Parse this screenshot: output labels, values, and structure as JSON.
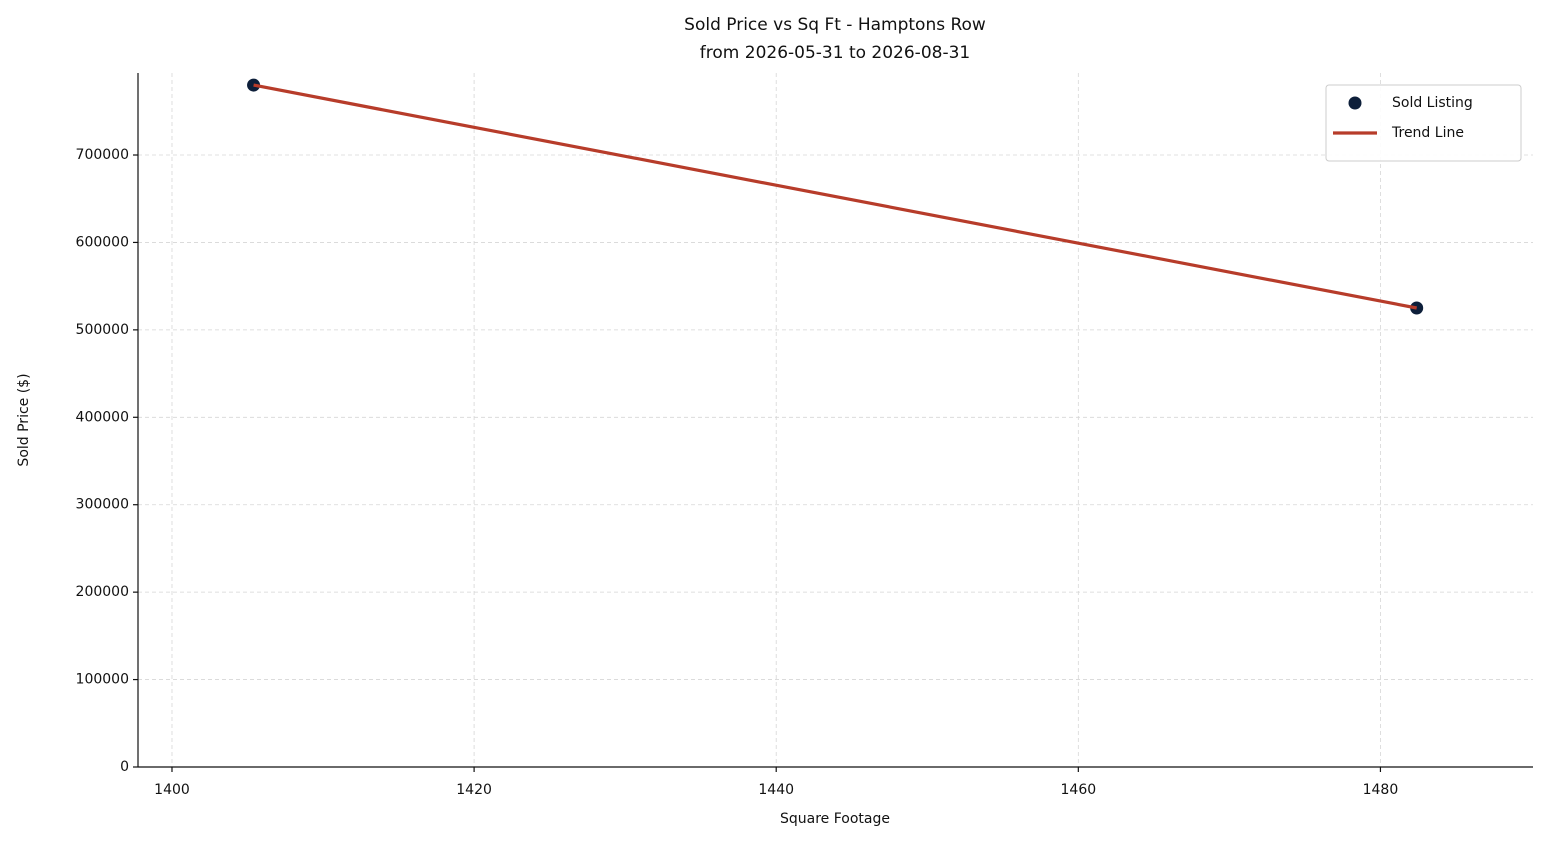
{
  "chart_data": {
    "type": "scatter",
    "title": "Sold Price vs Sq Ft - Hamptons Row",
    "subtitle": "from 2026-05-31 to 2026-08-31",
    "x_label": "Square Footage",
    "y_label": "Sold Price ($)",
    "series": [
      {
        "name": "Sold Listing",
        "type": "scatter",
        "color": "#0d1f3a",
        "x": [
          1405.4,
          1482.4
        ],
        "values": [
          780000,
          525000
        ]
      },
      {
        "name": "Trend Line",
        "type": "line",
        "color": "#b73c2a",
        "x": [
          1405.4,
          1482.4
        ],
        "values": [
          780000,
          525000
        ]
      }
    ],
    "xlim": [
      1397.75,
      1490.1
    ],
    "xticks": [
      1400,
      1420,
      1440,
      1460,
      1480
    ],
    "ylim": [
      0,
      793800
    ],
    "yticks": [
      0,
      100000,
      200000,
      300000,
      400000,
      500000,
      600000,
      700000
    ],
    "grid": true,
    "legend": "upper right"
  }
}
